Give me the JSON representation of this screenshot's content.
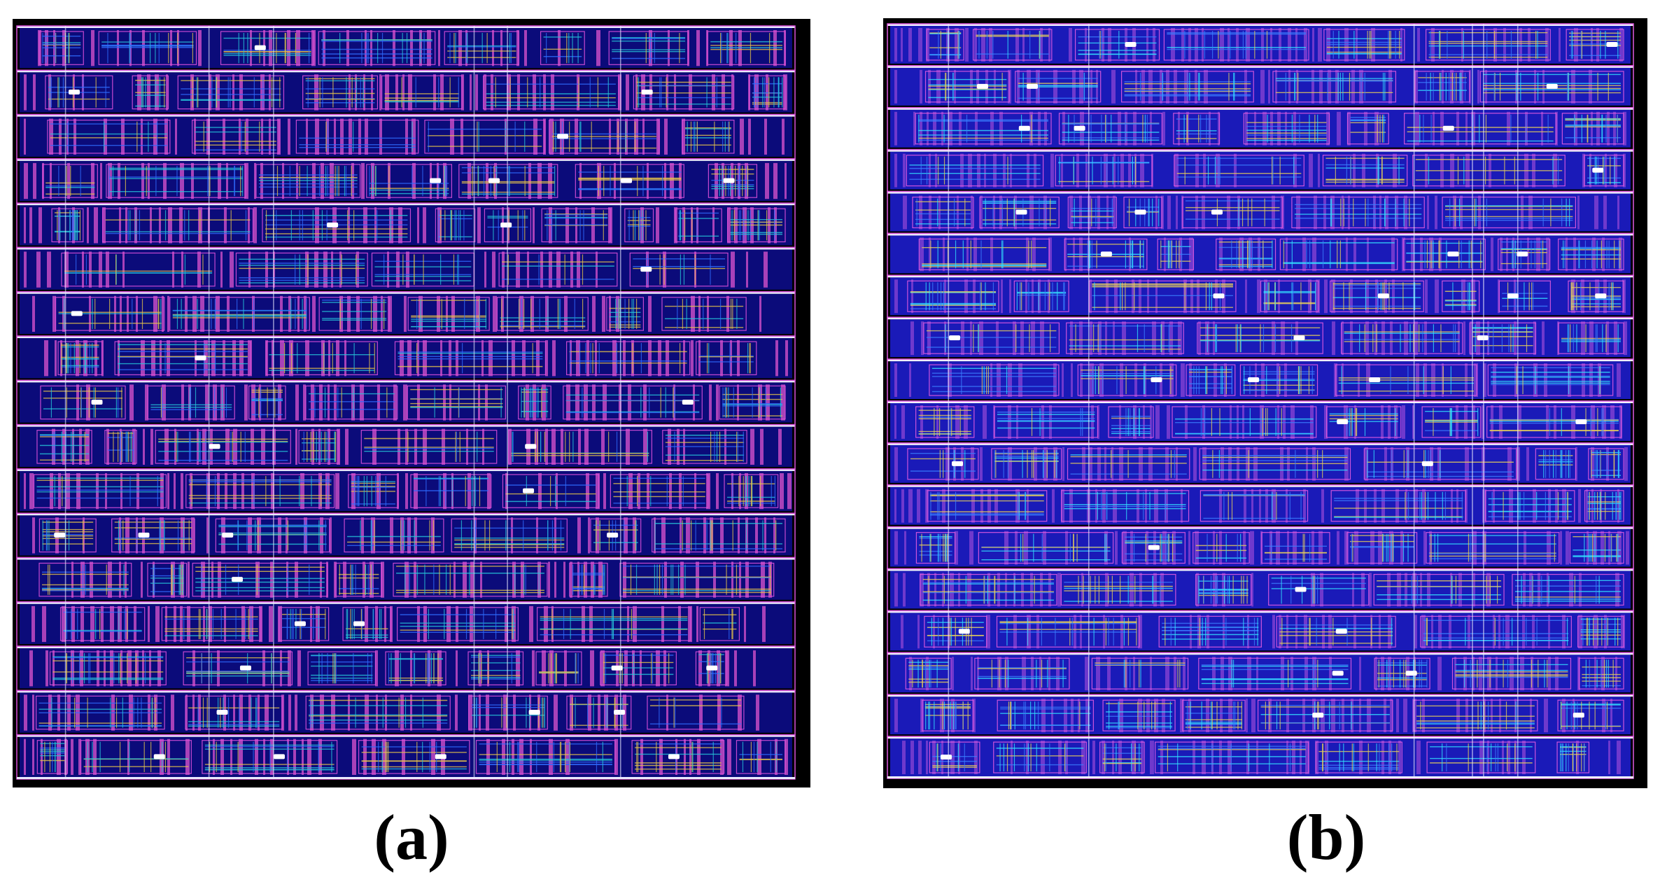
{
  "figure": {
    "panels": [
      {
        "caption": "(a)",
        "rows": 17,
        "palette": {
          "background": "#000000",
          "row_fill": "#0b0b7a",
          "rail": "#e9e9ff",
          "outline": "#d94fd9",
          "gate": "#c44bc4",
          "wire_a": "#26c6da",
          "wire_b": "#e6c34a",
          "wire_c": "#2f6cff",
          "via": "#ffffff"
        }
      },
      {
        "caption": "(b)",
        "rows": 18,
        "palette": {
          "background": "#000000",
          "row_fill": "#1a1ab8",
          "rail": "#f0f0ff",
          "outline": "#e05ae0",
          "gate": "#7f3fd0",
          "wire_a": "#33e0ff",
          "wire_b": "#e8d05a",
          "wire_c": "#3a7dff",
          "via": "#ffffff"
        }
      }
    ]
  }
}
